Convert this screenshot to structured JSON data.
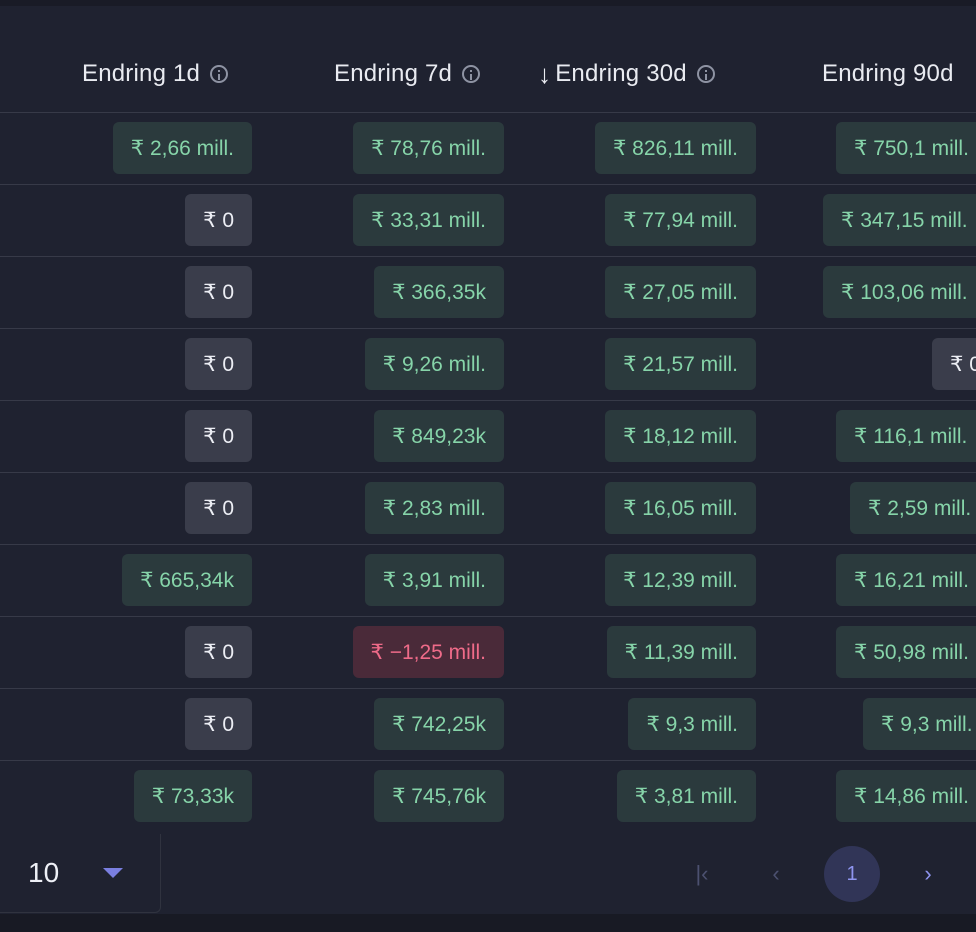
{
  "columns": [
    {
      "label": "Endring 1d",
      "info": true
    },
    {
      "label": "Endring 7d",
      "info": true
    },
    {
      "label": "Endring 30d",
      "info": true,
      "sort_icon": "arrow-down"
    },
    {
      "label": "Endring 90d",
      "info": false
    }
  ],
  "rows": [
    {
      "c1": "₹ 2,66 mill.",
      "c1t": "pos",
      "c7": "₹ 78,76 mill.",
      "c7t": "pos",
      "c30": "₹ 826,11 mill.",
      "c30t": "pos",
      "c90": "₹ 750,1 mill.",
      "c90t": "pos"
    },
    {
      "c1": "₹ 0",
      "c1t": "neu",
      "c7": "₹ 33,31 mill.",
      "c7t": "pos",
      "c30": "₹ 77,94 mill.",
      "c30t": "pos",
      "c90": "₹ 347,15 mill.",
      "c90t": "pos"
    },
    {
      "c1": "₹ 0",
      "c1t": "neu",
      "c7": "₹ 366,35k",
      "c7t": "pos",
      "c30": "₹ 27,05 mill.",
      "c30t": "pos",
      "c90": "₹ 103,06 mill.",
      "c90t": "pos"
    },
    {
      "c1": "₹ 0",
      "c1t": "neu",
      "c7": "₹ 9,26 mill.",
      "c7t": "pos",
      "c30": "₹ 21,57 mill.",
      "c30t": "pos",
      "c90": "₹ 0",
      "c90t": "neu"
    },
    {
      "c1": "₹ 0",
      "c1t": "neu",
      "c7": "₹ 849,23k",
      "c7t": "pos",
      "c30": "₹ 18,12 mill.",
      "c30t": "pos",
      "c90": "₹ 116,1 mill.",
      "c90t": "pos"
    },
    {
      "c1": "₹ 0",
      "c1t": "neu",
      "c7": "₹ 2,83 mill.",
      "c7t": "pos",
      "c30": "₹ 16,05 mill.",
      "c30t": "pos",
      "c90": "₹ 2,59 mill.",
      "c90t": "pos"
    },
    {
      "c1": "₹ 665,34k",
      "c1t": "pos",
      "c7": "₹ 3,91 mill.",
      "c7t": "pos",
      "c30": "₹ 12,39 mill.",
      "c30t": "pos",
      "c90": "₹ 16,21 mill.",
      "c90t": "pos"
    },
    {
      "c1": "₹ 0",
      "c1t": "neu",
      "c7": "₹ −1,25 mill.",
      "c7t": "neg",
      "c30": "₹ 11,39 mill.",
      "c30t": "pos",
      "c90": "₹ 50,98 mill.",
      "c90t": "pos"
    },
    {
      "c1": "₹ 0",
      "c1t": "neu",
      "c7": "₹ 742,25k",
      "c7t": "pos",
      "c30": "₹ 9,3 mill.",
      "c30t": "pos",
      "c90": "₹ 9,3 mill.",
      "c90t": "pos"
    },
    {
      "c1": "₹ 73,33k",
      "c1t": "pos",
      "c7": "₹ 745,76k",
      "c7t": "pos",
      "c30": "₹ 3,81 mill.",
      "c30t": "pos",
      "c90": "₹ 14,86 mill.",
      "c90t": "pos"
    }
  ],
  "pagination": {
    "page_size": "10",
    "current_page": "1",
    "first_label": "|‹",
    "prev_label": "‹",
    "next_label": "›"
  },
  "colors": {
    "positive": "#86d4a9",
    "negative": "#ef6b89",
    "neutral": "#eceef4"
  }
}
